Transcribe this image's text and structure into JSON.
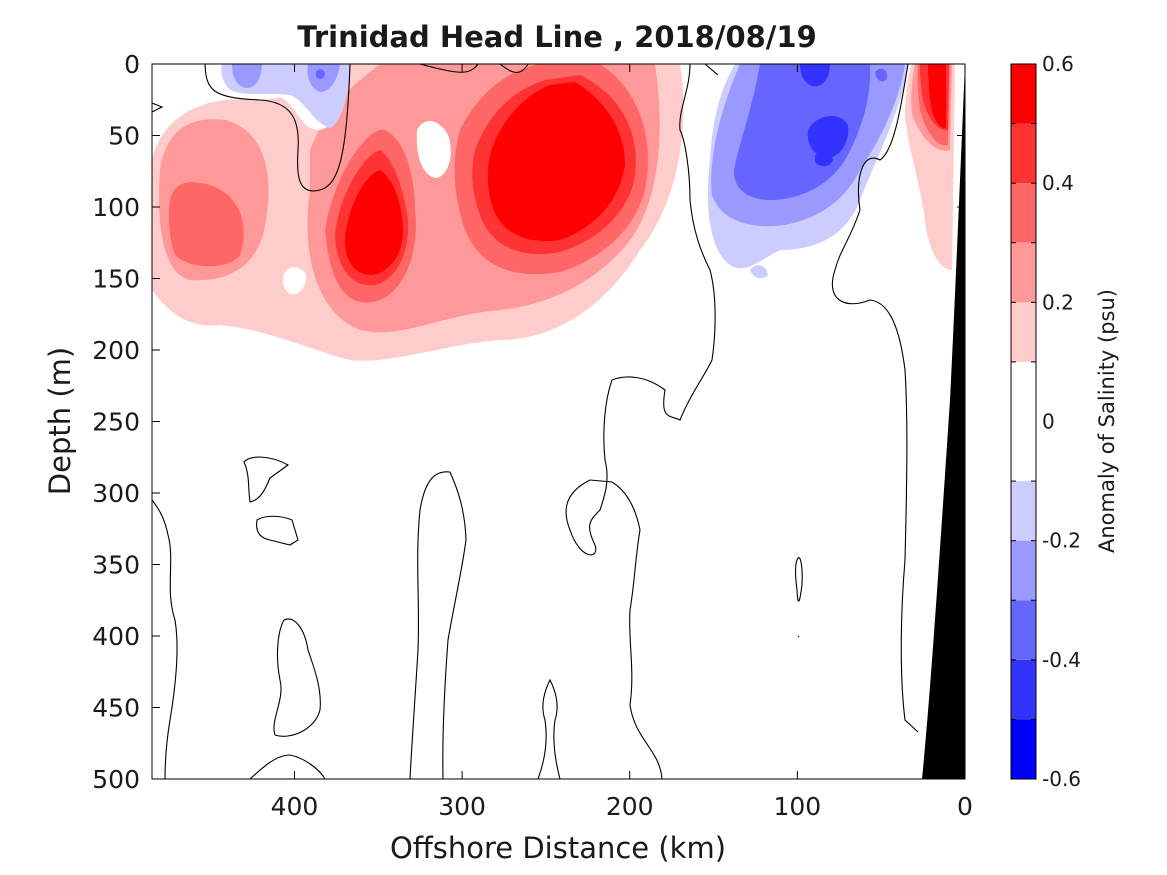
{
  "chart_data": {
    "type": "contour",
    "title": "Trinidad Head Line , 2018/08/19",
    "xlabel": "Offshore Distance (km)",
    "ylabel": "Depth (m)",
    "xlim": [
      485,
      0
    ],
    "ylim": [
      0,
      500
    ],
    "x_reversed": true,
    "y_reversed": true,
    "xticks": [
      400,
      300,
      200,
      100,
      0
    ],
    "yticks": [
      0,
      50,
      100,
      150,
      200,
      250,
      300,
      350,
      400,
      450,
      500
    ],
    "colorbar": {
      "label": "Anomaly of Salinity (psu)",
      "range": [
        -0.6,
        0.6
      ],
      "ticks": [
        -0.6,
        -0.4,
        -0.2,
        0,
        0.2,
        0.4,
        0.6
      ],
      "levels": [
        -0.6,
        -0.5,
        -0.4,
        -0.3,
        -0.2,
        -0.1,
        0.1,
        0.2,
        0.3,
        0.4,
        0.5,
        0.6
      ],
      "colors": [
        "#0000ff",
        "#3333ff",
        "#6666ff",
        "#9999ff",
        "#ccccff",
        "#ffffff",
        "#ffcccc",
        "#ff9999",
        "#ff6666",
        "#ff3333",
        "#ff0000"
      ]
    },
    "features": [
      {
        "name": "positive-anomaly-core-250km",
        "approx_distance_km": 245,
        "approx_depth_m": 90,
        "max_value": 0.6
      },
      {
        "name": "positive-anomaly-core-355km",
        "approx_distance_km": 355,
        "approx_depth_m": 120,
        "max_value": 0.5
      },
      {
        "name": "positive-anomaly-core-455km",
        "approx_distance_km": 460,
        "approx_depth_m": 115,
        "max_value": 0.3
      },
      {
        "name": "negative-anomaly-core-90km",
        "approx_distance_km": 90,
        "approx_depth_m": 60,
        "min_value": -0.4
      },
      {
        "name": "nearshore-positive-anomaly",
        "approx_distance_km": 20,
        "approx_depth_m": 30,
        "max_value": 0.6
      },
      {
        "name": "bathymetry",
        "color": "#000000"
      }
    ]
  }
}
